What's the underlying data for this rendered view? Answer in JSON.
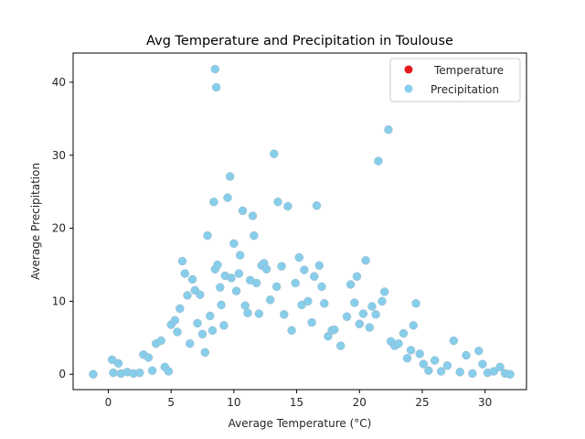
{
  "chart_data": {
    "type": "scatter",
    "title": "Avg Temperature and Precipitation in Toulouse",
    "xlabel": "Average Temperature (°C)",
    "ylabel": "Average Precipitation",
    "xlim": [
      -2.8,
      33.3
    ],
    "ylim": [
      -2.1,
      44
    ],
    "xticks": [
      0,
      5,
      10,
      15,
      20,
      25,
      30
    ],
    "yticks": [
      0,
      10,
      20,
      30,
      40
    ],
    "grid": false,
    "legend_position": "top-right",
    "series": [
      {
        "name": "Temperature",
        "color": "#e31a1c",
        "marker": "circle",
        "points": []
      },
      {
        "name": "Precipitation",
        "color": "#87ceeb",
        "marker": "circle",
        "points": [
          [
            -1.2,
            0
          ],
          [
            0.3,
            2.0
          ],
          [
            0.4,
            0.2
          ],
          [
            0.8,
            1.5
          ],
          [
            1.0,
            0.1
          ],
          [
            1.5,
            0.3
          ],
          [
            2.0,
            0.1
          ],
          [
            2.5,
            0.2
          ],
          [
            2.8,
            2.7
          ],
          [
            3.2,
            2.3
          ],
          [
            3.5,
            0.5
          ],
          [
            3.8,
            4.2
          ],
          [
            4.2,
            4.6
          ],
          [
            4.5,
            1.0
          ],
          [
            4.8,
            0.4
          ],
          [
            5.0,
            6.8
          ],
          [
            5.3,
            7.4
          ],
          [
            5.5,
            5.8
          ],
          [
            5.7,
            9.0
          ],
          [
            5.9,
            15.5
          ],
          [
            6.1,
            13.8
          ],
          [
            6.3,
            10.8
          ],
          [
            6.5,
            4.2
          ],
          [
            6.7,
            13.0
          ],
          [
            6.9,
            11.5
          ],
          [
            7.1,
            7.0
          ],
          [
            7.3,
            10.9
          ],
          [
            7.5,
            5.5
          ],
          [
            7.7,
            3.0
          ],
          [
            7.9,
            19.0
          ],
          [
            8.1,
            8.0
          ],
          [
            8.3,
            6.0
          ],
          [
            8.5,
            41.8
          ],
          [
            8.6,
            39.3
          ],
          [
            8.4,
            23.6
          ],
          [
            8.5,
            14.4
          ],
          [
            8.7,
            15.0
          ],
          [
            8.9,
            11.9
          ],
          [
            9.0,
            9.5
          ],
          [
            9.2,
            6.7
          ],
          [
            9.3,
            13.5
          ],
          [
            9.5,
            24.2
          ],
          [
            9.7,
            27.1
          ],
          [
            9.8,
            13.2
          ],
          [
            10.0,
            17.9
          ],
          [
            10.2,
            11.4
          ],
          [
            10.4,
            13.8
          ],
          [
            10.5,
            16.3
          ],
          [
            10.7,
            22.4
          ],
          [
            10.9,
            9.4
          ],
          [
            11.1,
            8.4
          ],
          [
            11.3,
            12.9
          ],
          [
            11.5,
            21.7
          ],
          [
            11.6,
            19.0
          ],
          [
            11.8,
            12.5
          ],
          [
            12.0,
            8.3
          ],
          [
            12.2,
            14.9
          ],
          [
            12.4,
            15.2
          ],
          [
            12.6,
            14.4
          ],
          [
            12.9,
            10.2
          ],
          [
            13.2,
            30.2
          ],
          [
            13.4,
            12.0
          ],
          [
            13.5,
            23.6
          ],
          [
            13.8,
            14.8
          ],
          [
            14.0,
            8.2
          ],
          [
            14.3,
            23.0
          ],
          [
            14.6,
            6.0
          ],
          [
            14.9,
            12.5
          ],
          [
            15.2,
            16.0
          ],
          [
            15.4,
            9.5
          ],
          [
            15.6,
            14.3
          ],
          [
            15.9,
            10.0
          ],
          [
            16.2,
            7.1
          ],
          [
            16.4,
            13.4
          ],
          [
            16.6,
            23.1
          ],
          [
            16.8,
            14.9
          ],
          [
            17.0,
            12.0
          ],
          [
            17.2,
            9.7
          ],
          [
            17.5,
            5.2
          ],
          [
            17.8,
            6.0
          ],
          [
            18.0,
            6.1
          ],
          [
            18.5,
            3.9
          ],
          [
            19.0,
            7.9
          ],
          [
            19.3,
            12.3
          ],
          [
            19.6,
            9.8
          ],
          [
            19.8,
            13.4
          ],
          [
            20.0,
            6.9
          ],
          [
            20.3,
            8.3
          ],
          [
            20.5,
            15.6
          ],
          [
            20.8,
            6.4
          ],
          [
            21.0,
            9.3
          ],
          [
            21.3,
            8.2
          ],
          [
            21.5,
            29.2
          ],
          [
            21.8,
            10.0
          ],
          [
            22.0,
            11.3
          ],
          [
            22.3,
            33.5
          ],
          [
            22.5,
            4.5
          ],
          [
            22.8,
            3.9
          ],
          [
            23.1,
            4.2
          ],
          [
            23.5,
            5.6
          ],
          [
            23.8,
            2.2
          ],
          [
            24.1,
            3.3
          ],
          [
            24.3,
            6.7
          ],
          [
            24.5,
            9.7
          ],
          [
            24.8,
            2.8
          ],
          [
            25.1,
            1.4
          ],
          [
            25.5,
            0.5
          ],
          [
            26.0,
            1.9
          ],
          [
            26.5,
            0.4
          ],
          [
            27.0,
            1.2
          ],
          [
            27.5,
            4.6
          ],
          [
            28.0,
            0.3
          ],
          [
            28.5,
            2.6
          ],
          [
            29.0,
            0.1
          ],
          [
            29.5,
            3.2
          ],
          [
            29.8,
            1.4
          ],
          [
            30.2,
            0.2
          ],
          [
            30.7,
            0.4
          ],
          [
            31.2,
            1.0
          ],
          [
            31.6,
            0.1
          ],
          [
            32.0,
            0
          ]
        ]
      }
    ]
  }
}
